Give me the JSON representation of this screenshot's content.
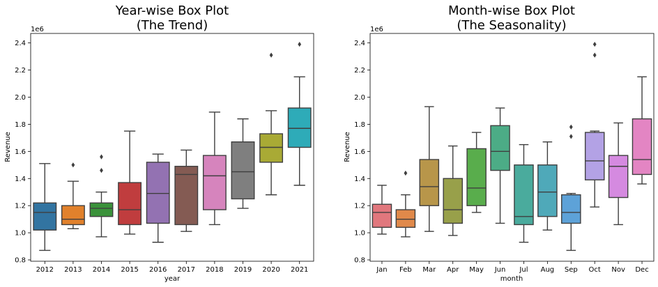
{
  "chart_data": [
    {
      "type": "box",
      "title_lines": [
        "Year-wise Box Plot",
        "(The Trend)"
      ],
      "xlabel": "year",
      "ylabel": "Revenue",
      "y_offset_label": "1e6",
      "ylim": [
        0.79,
        2.47
      ],
      "yticks": [
        "0.8",
        "1.0",
        "1.2",
        "1.4",
        "1.6",
        "1.8",
        "2.0",
        "2.2",
        "2.4"
      ],
      "grid": false,
      "categories": [
        "2012",
        "2013",
        "2014",
        "2015",
        "2016",
        "2017",
        "2018",
        "2019",
        "2020",
        "2021"
      ],
      "boxes": [
        {
          "color": "#3274a1",
          "whislo": 0.87,
          "q1": 1.02,
          "med": 1.15,
          "q3": 1.22,
          "whishi": 1.51,
          "fliers": []
        },
        {
          "color": "#e1812c",
          "whislo": 1.03,
          "q1": 1.06,
          "med": 1.1,
          "q3": 1.2,
          "whishi": 1.38,
          "fliers": [
            1.5
          ]
        },
        {
          "color": "#3a923a",
          "whislo": 0.97,
          "q1": 1.12,
          "med": 1.18,
          "q3": 1.22,
          "whishi": 1.3,
          "fliers": [
            1.46,
            1.56
          ]
        },
        {
          "color": "#c03d3e",
          "whislo": 0.99,
          "q1": 1.06,
          "med": 1.17,
          "q3": 1.37,
          "whishi": 1.75,
          "fliers": []
        },
        {
          "color": "#9372b2",
          "whislo": 0.93,
          "q1": 1.07,
          "med": 1.29,
          "q3": 1.52,
          "whishi": 1.58,
          "fliers": []
        },
        {
          "color": "#845b53",
          "whislo": 1.01,
          "q1": 1.06,
          "med": 1.43,
          "q3": 1.49,
          "whishi": 1.61,
          "fliers": []
        },
        {
          "color": "#d684bd",
          "whislo": 1.06,
          "q1": 1.17,
          "med": 1.42,
          "q3": 1.57,
          "whishi": 1.89,
          "fliers": []
        },
        {
          "color": "#7f7f7f",
          "whislo": 1.18,
          "q1": 1.25,
          "med": 1.45,
          "q3": 1.67,
          "whishi": 1.84,
          "fliers": []
        },
        {
          "color": "#a9aa35",
          "whislo": 1.28,
          "q1": 1.52,
          "med": 1.63,
          "q3": 1.73,
          "whishi": 1.9,
          "fliers": [
            2.31
          ]
        },
        {
          "color": "#2eabb8",
          "whislo": 1.35,
          "q1": 1.63,
          "med": 1.77,
          "q3": 1.92,
          "whishi": 2.15,
          "fliers": [
            2.39
          ]
        }
      ]
    },
    {
      "type": "box",
      "title_lines": [
        "Month-wise Box Plot",
        "(The Seasonality)"
      ],
      "xlabel": "month",
      "ylabel": "Revenue",
      "y_offset_label": "1e6",
      "ylim": [
        0.79,
        2.47
      ],
      "yticks": [
        "0.8",
        "1.0",
        "1.2",
        "1.4",
        "1.6",
        "1.8",
        "2.0",
        "2.2",
        "2.4"
      ],
      "grid": false,
      "categories": [
        "Jan",
        "Feb",
        "Mar",
        "Apr",
        "May",
        "Jun",
        "Jul",
        "Aug",
        "Sep",
        "Oct",
        "Nov",
        "Dec"
      ],
      "boxes": [
        {
          "color": "#e1777d",
          "whislo": 0.99,
          "q1": 1.04,
          "med": 1.15,
          "q3": 1.21,
          "whishi": 1.35,
          "fliers": []
        },
        {
          "color": "#e0894a",
          "whislo": 0.97,
          "q1": 1.04,
          "med": 1.1,
          "q3": 1.17,
          "whishi": 1.28,
          "fliers": [
            1.44
          ]
        },
        {
          "color": "#b8964a",
          "whislo": 1.01,
          "q1": 1.2,
          "med": 1.34,
          "q3": 1.54,
          "whishi": 1.93,
          "fliers": []
        },
        {
          "color": "#98a04a",
          "whislo": 0.98,
          "q1": 1.07,
          "med": 1.17,
          "q3": 1.4,
          "whishi": 1.64,
          "fliers": []
        },
        {
          "color": "#59ad4c",
          "whislo": 1.15,
          "q1": 1.2,
          "med": 1.33,
          "q3": 1.62,
          "whishi": 1.74,
          "fliers": []
        },
        {
          "color": "#4cac86",
          "whislo": 1.07,
          "q1": 1.46,
          "med": 1.6,
          "q3": 1.79,
          "whishi": 1.92,
          "fliers": []
        },
        {
          "color": "#4aab9d",
          "whislo": 0.93,
          "q1": 1.06,
          "med": 1.12,
          "q3": 1.5,
          "whishi": 1.65,
          "fliers": []
        },
        {
          "color": "#4fa9b9",
          "whislo": 1.02,
          "q1": 1.12,
          "med": 1.3,
          "q3": 1.5,
          "whishi": 1.67,
          "fliers": []
        },
        {
          "color": "#5da2d8",
          "whislo": 0.87,
          "q1": 1.07,
          "med": 1.15,
          "q3": 1.28,
          "whishi": 1.29,
          "fliers": [
            1.71,
            1.78
          ]
        },
        {
          "color": "#b3a2e5",
          "whislo": 1.19,
          "q1": 1.39,
          "med": 1.53,
          "q3": 1.74,
          "whishi": 1.75,
          "fliers": [
            2.31,
            2.39
          ]
        },
        {
          "color": "#d58ae0",
          "whislo": 1.06,
          "q1": 1.26,
          "med": 1.49,
          "q3": 1.57,
          "whishi": 1.81,
          "fliers": []
        },
        {
          "color": "#e385c3",
          "whislo": 1.36,
          "q1": 1.43,
          "med": 1.54,
          "q3": 1.84,
          "whishi": 2.15,
          "fliers": []
        }
      ]
    }
  ]
}
